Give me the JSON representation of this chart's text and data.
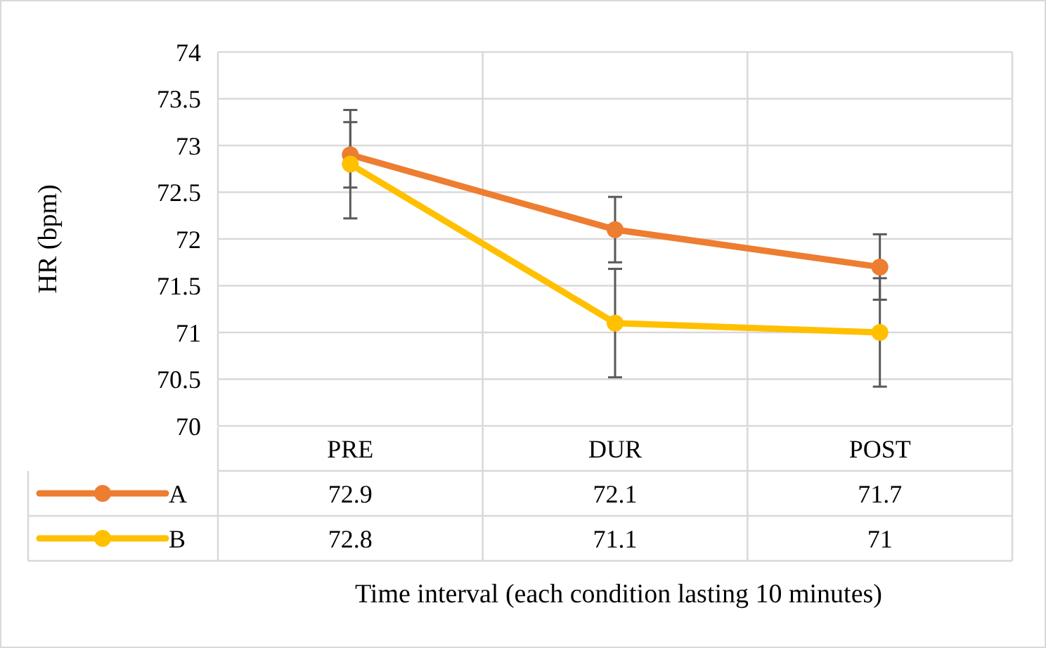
{
  "chart_data": {
    "type": "line",
    "categories": [
      "PRE",
      "DUR",
      "POST"
    ],
    "series": [
      {
        "name": "A",
        "color": "#ed7d31",
        "values": [
          72.9,
          72.1,
          71.7
        ],
        "errors": [
          0.35,
          0.35,
          0.35
        ]
      },
      {
        "name": "B",
        "color": "#ffc000",
        "values": [
          72.8,
          71.1,
          71
        ],
        "errors": [
          0.58,
          0.58,
          0.58
        ]
      }
    ],
    "ylim": [
      70,
      74
    ],
    "yticks": [
      70,
      70.5,
      71,
      71.5,
      72,
      72.5,
      73,
      73.5,
      74
    ],
    "xlabel": "Time interval (each condition lasting 10 minutes)",
    "ylabel": "HR (bpm)",
    "grid": true,
    "marker": "circle",
    "data_labels": true,
    "legend": "bottom left"
  }
}
